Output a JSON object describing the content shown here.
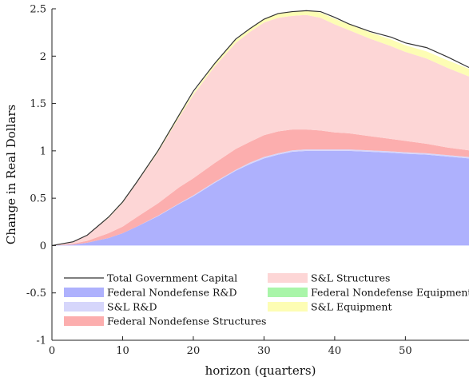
{
  "chart_data": {
    "type": "area",
    "xlabel": "horizon (quarters)",
    "ylabel": "Change in Real Dollars",
    "xlim": [
      0,
      59
    ],
    "ylim": [
      -1,
      2.5
    ],
    "xticks": [
      "0",
      "10",
      "20",
      "30",
      "40",
      "50"
    ],
    "yticks": [
      "-1",
      "-0.5",
      "0",
      "0.5",
      "1",
      "1.5",
      "2",
      "2.5"
    ],
    "x": [
      0,
      3,
      5,
      8,
      10,
      12,
      15,
      18,
      20,
      23,
      26,
      28,
      30,
      32,
      34,
      36,
      38,
      40,
      42,
      45,
      48,
      50,
      53,
      56,
      59
    ],
    "series": [
      {
        "name": "Federal Nondefense R&D",
        "color": "#aeb1fd",
        "values": [
          0,
          0.01,
          0.03,
          0.08,
          0.13,
          0.2,
          0.31,
          0.44,
          0.52,
          0.66,
          0.79,
          0.86,
          0.92,
          0.96,
          0.99,
          1.0,
          1.0,
          1.0,
          1.0,
          0.99,
          0.98,
          0.97,
          0.96,
          0.94,
          0.92
        ]
      },
      {
        "name": "S&L R&D",
        "color": "#d6d6fb",
        "values": [
          0,
          0,
          0,
          0,
          0,
          0,
          0.005,
          0.005,
          0.01,
          0.01,
          0.01,
          0.015,
          0.015,
          0.015,
          0.015,
          0.015,
          0.015,
          0.015,
          0.015,
          0.015,
          0.015,
          0.015,
          0.015,
          0.015,
          0.015
        ]
      },
      {
        "name": "Federal Nondefense Structures",
        "color": "#fcaeae",
        "values": [
          0,
          0.01,
          0.02,
          0.05,
          0.07,
          0.1,
          0.13,
          0.17,
          0.18,
          0.2,
          0.22,
          0.22,
          0.23,
          0.23,
          0.22,
          0.21,
          0.2,
          0.18,
          0.17,
          0.15,
          0.13,
          0.12,
          0.1,
          0.08,
          0.07
        ]
      },
      {
        "name": "S&L Structures",
        "color": "#fdd6d6",
        "values": [
          0,
          0.02,
          0.06,
          0.16,
          0.25,
          0.36,
          0.54,
          0.74,
          0.88,
          1.02,
          1.12,
          1.16,
          1.19,
          1.2,
          1.2,
          1.21,
          1.19,
          1.14,
          1.09,
          1.03,
          0.98,
          0.94,
          0.9,
          0.84,
          0.78
        ]
      },
      {
        "name": "Federal Nondefense Equipment",
        "color": "#a9f5a9",
        "values": [
          0,
          0,
          0,
          0,
          0,
          0,
          0,
          0,
          0,
          0,
          0,
          0,
          0,
          0,
          0,
          0,
          0,
          0,
          0,
          0,
          0,
          0,
          0,
          0,
          0
        ]
      },
      {
        "name": "S&L Equipment",
        "color": "#fdfdb4",
        "values": [
          0,
          0,
          0,
          0.005,
          0.005,
          0.01,
          0.015,
          0.02,
          0.02,
          0.025,
          0.03,
          0.03,
          0.035,
          0.04,
          0.045,
          0.05,
          0.055,
          0.06,
          0.06,
          0.065,
          0.07,
          0.07,
          0.075,
          0.08,
          0.08
        ]
      }
    ],
    "total": {
      "name": "Total Government Capital",
      "color": "#333333",
      "values": [
        0,
        0.04,
        0.11,
        0.3,
        0.46,
        0.67,
        1.0,
        1.38,
        1.63,
        1.92,
        2.18,
        2.29,
        2.39,
        2.45,
        2.47,
        2.48,
        2.47,
        2.41,
        2.34,
        2.26,
        2.2,
        2.14,
        2.09,
        1.99,
        1.88
      ]
    },
    "legend": {
      "position": "lower-left",
      "entries": [
        {
          "label": "Total Government Capital",
          "kind": "line",
          "color": "#333333"
        },
        {
          "label": "S&L Structures",
          "kind": "patch",
          "color": "#fdd6d6"
        },
        {
          "label": "Federal Nondefense R&D",
          "kind": "patch",
          "color": "#aeb1fd"
        },
        {
          "label": "Federal Nondefense Equipment",
          "kind": "patch",
          "color": "#a9f5a9"
        },
        {
          "label": "S&L R&D",
          "kind": "patch",
          "color": "#d6d6fb"
        },
        {
          "label": "S&L Equipment",
          "kind": "patch",
          "color": "#fdfdb4"
        },
        {
          "label": "Federal Nondefense Structures",
          "kind": "patch",
          "color": "#fcaeae"
        }
      ]
    },
    "grid": false
  }
}
